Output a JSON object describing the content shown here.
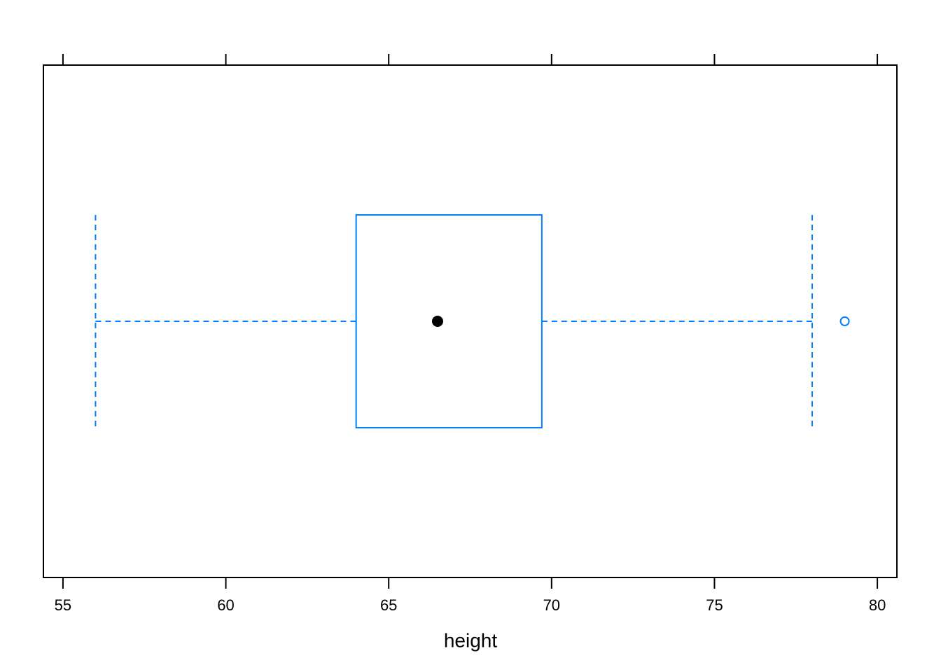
{
  "chart_data": {
    "type": "box",
    "xlabel": "height",
    "xlim": [
      54.4,
      80.6
    ],
    "xticks": [
      55,
      60,
      65,
      70,
      75,
      80
    ],
    "series": [
      {
        "color": "#0080ff",
        "median_color": "#000000",
        "min": 56,
        "q1": 64,
        "median": 66.5,
        "q3": 69.7,
        "max": 78,
        "outliers": [
          79
        ]
      }
    ]
  }
}
